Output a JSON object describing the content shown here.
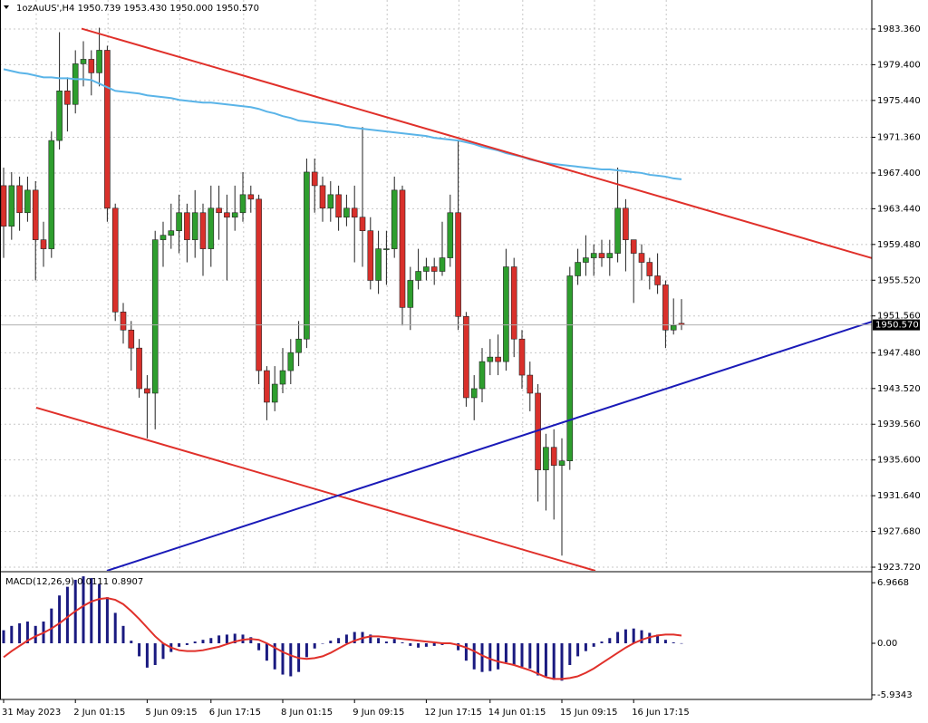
{
  "chart_data": [
    {
      "type": "candlestick",
      "title": "1ozAuUS',H4  1950.739 1953.430 1950.000 1950.570",
      "categories": [
        "31 May 2023",
        null,
        null,
        null,
        null,
        null,
        null,
        null,
        null,
        "2 Jun 01:15",
        null,
        null,
        null,
        null,
        null,
        null,
        null,
        null,
        "5 Jun 09:15",
        null,
        null,
        null,
        null,
        null,
        null,
        null,
        "6 Jun 17:15",
        null,
        null,
        null,
        null,
        null,
        null,
        null,
        null,
        "8 Jun 01:15",
        null,
        null,
        null,
        null,
        null,
        null,
        null,
        null,
        "9 Jun 09:15",
        null,
        null,
        null,
        null,
        null,
        null,
        null,
        null,
        "12 Jun 17:15",
        null,
        null,
        null,
        null,
        null,
        null,
        null,
        "14 Jun 01:15",
        null,
        null,
        null,
        null,
        null,
        null,
        null,
        null,
        "15 Jun 09:15",
        null,
        null,
        null,
        null,
        null,
        null,
        null,
        null,
        "16 Jun 17:15",
        null,
        null,
        null,
        null,
        null,
        null
      ],
      "open": [
        1966,
        1961.5,
        1966,
        1963,
        1965.5,
        1960,
        1959,
        1971,
        1976.5,
        1975,
        1979.5,
        1980,
        1978.5,
        1981,
        1963.5,
        1952,
        1950,
        1948,
        1943.5,
        1943,
        1960,
        1960.5,
        1961,
        1963,
        1960,
        1963,
        1959,
        1963.5,
        1963,
        1962.5,
        1963,
        1965,
        1964.5,
        1945.5,
        1942,
        1944,
        1945.5,
        1947.5,
        1949,
        1967.5,
        1966,
        1963.5,
        1965,
        1962.5,
        1963.5,
        1962.5,
        1961,
        1955.5,
        1959,
        1959,
        1965.5,
        1952.5,
        1955.5,
        1956.5,
        1957,
        1956.5,
        1958,
        1963,
        1951.5,
        1942.5,
        1943.5,
        1946.5,
        1947,
        1946.5,
        1957,
        1949,
        1945,
        1943,
        1934.5,
        1937,
        1935,
        1935.5,
        1956,
        1957.5,
        1958,
        1958.5,
        1958,
        1958.5,
        1963.5,
        1960,
        1958.5,
        1957.5,
        1956,
        1955,
        1950,
        1950.739
      ],
      "high": [
        1968,
        1967.5,
        1967,
        1967,
        1966.5,
        1962,
        1972,
        1983,
        1978,
        1981,
        1982,
        1981,
        1983.5,
        1981.5,
        1964,
        1953,
        1951,
        1949,
        1945,
        1961,
        1962,
        1964,
        1965,
        1964,
        1965.5,
        1964,
        1966,
        1966,
        1965,
        1966,
        1967.5,
        1966,
        1965,
        1946,
        1946,
        1948,
        1949,
        1951,
        1969,
        1969,
        1967,
        1966.5,
        1966,
        1965,
        1966,
        1972.5,
        1962.5,
        1961,
        1961,
        1967,
        1966,
        1957,
        1959,
        1958,
        1958,
        1962,
        1965,
        1971,
        1952,
        1945,
        1948,
        1949,
        1949.5,
        1959,
        1958,
        1950,
        1946.5,
        1944,
        1938.5,
        1939,
        1938,
        1957,
        1959,
        1960.5,
        1959.5,
        1960,
        1960,
        1968,
        1964.5,
        1960,
        1959.5,
        1958,
        1958.5,
        1955.5,
        1953.5,
        1953.43
      ],
      "low": [
        1958,
        1960,
        1961,
        1962,
        1955.5,
        1957,
        1958,
        1970,
        1972,
        1974,
        1977,
        1976,
        1977,
        1962,
        1951,
        1948.5,
        1945.5,
        1942.5,
        1938,
        1939,
        1957,
        1959,
        1958.5,
        1957.5,
        1958,
        1956,
        1957,
        1960,
        1955.5,
        1961,
        1962,
        1963,
        1944,
        1940,
        1941,
        1943,
        1944,
        1946,
        1948,
        1963,
        1962,
        1962,
        1961,
        1961.5,
        1957.5,
        1957,
        1954.5,
        1954,
        1955,
        1958,
        1950.5,
        1950,
        1954.5,
        1955.5,
        1955,
        1956,
        1957,
        1950,
        1941.5,
        1940,
        1942,
        1945,
        1945,
        1945.5,
        1947,
        1943.5,
        1941,
        1931,
        1930,
        1929,
        1925,
        1934.5,
        1955,
        1956,
        1956,
        1957,
        1956,
        1957.5,
        1956.5,
        1953,
        1955.5,
        1954.5,
        1954,
        1948,
        1949.5,
        1950
      ],
      "close": [
        1961.5,
        1966,
        1963,
        1965.5,
        1960,
        1959,
        1971,
        1976.5,
        1975,
        1979.5,
        1980,
        1978.5,
        1981,
        1963.5,
        1952,
        1950,
        1948,
        1943.5,
        1943,
        1960,
        1960.5,
        1961,
        1963,
        1960,
        1963,
        1959,
        1963.5,
        1963,
        1962.5,
        1963,
        1965,
        1964.5,
        1945.5,
        1942,
        1944,
        1945.5,
        1947.5,
        1949,
        1967.5,
        1966,
        1963.5,
        1965,
        1962.5,
        1963.5,
        1962.5,
        1961,
        1955.5,
        1959,
        1959,
        1965.5,
        1952.5,
        1955.5,
        1956.5,
        1957,
        1956.5,
        1958,
        1963,
        1951.5,
        1942.5,
        1943.5,
        1946.5,
        1947,
        1946.5,
        1957,
        1949,
        1945,
        1943,
        1934.5,
        1937,
        1935,
        1935.5,
        1956,
        1957.5,
        1958,
        1958.5,
        1958,
        1958.5,
        1963.5,
        1960,
        1958.5,
        1957.5,
        1956,
        1955,
        1950,
        1950.5,
        1950.57
      ],
      "up_color": "#2e9e2e",
      "down_color": "#d9302b",
      "ma": {
        "color": "#5ab4e8",
        "values": [
          1978.9,
          1978.7,
          1978.5,
          1978.4,
          1978.2,
          1978.0,
          1978.0,
          1977.9,
          1977.9,
          1977.8,
          1977.8,
          1977.7,
          1977.3,
          1976.9,
          1976.5,
          1976.4,
          1976.3,
          1976.2,
          1976.0,
          1975.9,
          1975.8,
          1975.7,
          1975.5,
          1975.4,
          1975.3,
          1975.2,
          1975.2,
          1975.1,
          1975.0,
          1974.9,
          1974.8,
          1974.7,
          1974.5,
          1974.2,
          1974.0,
          1973.7,
          1973.5,
          1973.2,
          1973.1,
          1973.0,
          1972.9,
          1972.8,
          1972.7,
          1972.5,
          1972.4,
          1972.3,
          1972.2,
          1972.1,
          1972.0,
          1971.9,
          1971.8,
          1971.7,
          1971.6,
          1971.5,
          1971.3,
          1971.2,
          1971.1,
          1971.0,
          1970.8,
          1970.6,
          1970.3,
          1970.1,
          1969.9,
          1969.6,
          1969.4,
          1969.2,
          1968.9,
          1968.7,
          1968.5,
          1968.4,
          1968.3,
          1968.2,
          1968.1,
          1968.0,
          1967.9,
          1967.8,
          1967.8,
          1967.7,
          1967.6,
          1967.5,
          1967.4,
          1967.2,
          1967.1,
          1967.0,
          1966.8,
          1966.7
        ]
      },
      "trendlines": [
        {
          "color": "#e0302a",
          "x": [
            9.77,
            108.9
          ],
          "y": [
            1983.4,
            1957.96
          ]
        },
        {
          "color": "#e0302a",
          "x": [
            4.09,
            74.2
          ],
          "y": [
            1941.4,
            1923.32
          ]
        },
        {
          "color": "#1a1ab8",
          "x": [
            12.95,
            108.9
          ],
          "y": [
            1923.32,
            1950.93
          ]
        }
      ],
      "last_price": {
        "value": 1950.57,
        "label": "1950.570"
      },
      "ylim": [
        1923.32,
        1986.57
      ],
      "yticks": [
        {
          "value": 1983.36,
          "label": "1983.360"
        },
        {
          "value": 1979.4,
          "label": "1979.400"
        },
        {
          "value": 1975.44,
          "label": "1975.440"
        },
        {
          "value": 1971.36,
          "label": "1971.360"
        },
        {
          "value": 1967.4,
          "label": "1967.400"
        },
        {
          "value": 1963.44,
          "label": "1963.440"
        },
        {
          "value": 1959.48,
          "label": "1959.480"
        },
        {
          "value": 1955.52,
          "label": "1955.520"
        },
        {
          "value": 1951.56,
          "label": "1951.560"
        },
        {
          "value": 1947.48,
          "label": "1947.480"
        },
        {
          "value": 1943.52,
          "label": "1943.520"
        },
        {
          "value": 1939.56,
          "label": "1939.560"
        },
        {
          "value": 1935.6,
          "label": "1935.600"
        },
        {
          "value": 1931.64,
          "label": "1931.640"
        },
        {
          "value": 1927.68,
          "label": "1927.680"
        },
        {
          "value": 1923.72,
          "label": "1923.720"
        }
      ],
      "grid": true
    },
    {
      "type": "macd",
      "title": "MACD(12,26,9) 0.0111 0.8907",
      "histogram": {
        "color": "#1a1a80",
        "values": [
          1.5,
          2.0,
          2.3,
          2.5,
          2.0,
          2.5,
          4.0,
          5.5,
          6.5,
          7.3,
          7.7,
          7.5,
          6.8,
          5.3,
          3.5,
          2.0,
          0.3,
          -1.5,
          -2.8,
          -2.5,
          -1.8,
          -1.0,
          -0.4,
          -0.2,
          0.2,
          0.4,
          0.6,
          0.9,
          1.0,
          1.1,
          1.0,
          0.7,
          -0.8,
          -2.0,
          -3.0,
          -3.6,
          -3.8,
          -3.3,
          -1.6,
          -0.6,
          0.0,
          0.3,
          0.6,
          1.0,
          1.3,
          1.3,
          1.0,
          0.6,
          0.2,
          0.5,
          0.1,
          -0.3,
          -0.5,
          -0.4,
          -0.3,
          -0.2,
          0.0,
          -0.8,
          -2.0,
          -3.0,
          -3.3,
          -3.2,
          -3.0,
          -2.2,
          -2.5,
          -2.7,
          -2.9,
          -3.7,
          -3.8,
          -4.2,
          -4.3,
          -2.5,
          -1.5,
          -0.9,
          -0.4,
          0.2,
          0.6,
          1.3,
          1.6,
          1.7,
          1.5,
          1.2,
          1.0,
          0.4,
          0.1,
          0.0111
        ]
      },
      "signal": {
        "color": "#e0302a",
        "values": [
          -1.6,
          -0.9,
          -0.3,
          0.3,
          0.8,
          1.2,
          1.7,
          2.3,
          3.0,
          3.7,
          4.3,
          4.8,
          5.1,
          5.2,
          5.0,
          4.5,
          3.7,
          2.8,
          1.8,
          0.8,
          0.0,
          -0.5,
          -0.8,
          -0.9,
          -0.9,
          -0.8,
          -0.6,
          -0.4,
          -0.1,
          0.2,
          0.4,
          0.5,
          0.4,
          0.0,
          -0.5,
          -1.0,
          -1.4,
          -1.7,
          -1.8,
          -1.7,
          -1.5,
          -1.1,
          -0.6,
          -0.1,
          0.3,
          0.6,
          0.8,
          0.8,
          0.7,
          0.6,
          0.5,
          0.4,
          0.3,
          0.2,
          0.1,
          0.0,
          0.0,
          -0.2,
          -0.5,
          -0.9,
          -1.4,
          -1.8,
          -2.1,
          -2.3,
          -2.5,
          -2.8,
          -3.1,
          -3.5,
          -3.9,
          -4.1,
          -4.1,
          -4.0,
          -3.8,
          -3.4,
          -2.9,
          -2.3,
          -1.7,
          -1.1,
          -0.5,
          0.0,
          0.4,
          0.7,
          0.9,
          1.0,
          1.0,
          0.8907
        ]
      },
      "ylim": [
        -6.46,
        8.13
      ],
      "yticks": [
        6.9668,
        {
          "value": 0,
          "label": "0.00"
        },
        -5.9343
      ]
    }
  ]
}
